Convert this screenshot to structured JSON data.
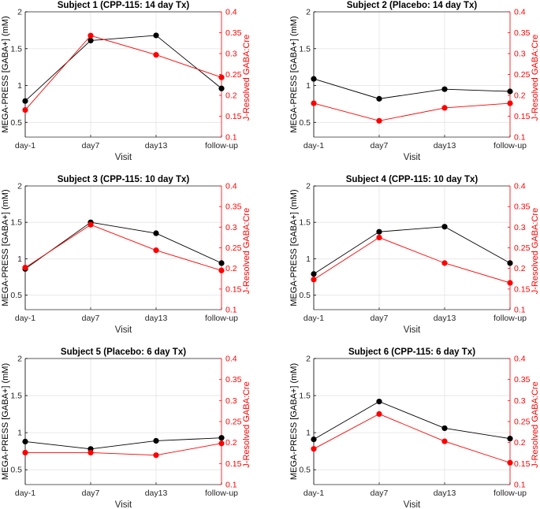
{
  "figure": {
    "left_axis_color": "#000000",
    "right_axis_color": "#ff0000"
  },
  "chart_data": [
    {
      "type": "line",
      "title": "Subject 1 (CPP-115: 14 day Tx)",
      "categories": [
        "day-1",
        "day7",
        "day13",
        "follow-up"
      ],
      "xlabel": "Visit",
      "ylabel": "MEGA-PRESS [GABA+] (mM)",
      "ylim": [
        0.3,
        2
      ],
      "yticks": [
        "0.5",
        "1",
        "1.5",
        "2"
      ],
      "ylabel_right": "J-Resolved GABA:Cre",
      "ylim_right": [
        0.1,
        0.4
      ],
      "yticks_right": [
        "0.1",
        "0.15",
        "0.2",
        "0.25",
        "0.3",
        "0.35",
        "0.4"
      ],
      "grid": true,
      "series": [
        {
          "name": "MEGA-PRESS [GABA+]",
          "axis": "left",
          "color": "#000000",
          "values": [
            0.79,
            1.61,
            1.68,
            0.96
          ]
        },
        {
          "name": "J-Resolved GABA:Cre",
          "axis": "right",
          "color": "#ff0000",
          "values": [
            0.165,
            0.343,
            0.297,
            0.243
          ]
        }
      ]
    },
    {
      "type": "line",
      "title": "Subject 2 (Placebo: 14 day Tx)",
      "categories": [
        "day-1",
        "day7",
        "day13",
        "follow-up"
      ],
      "xlabel": "Visit",
      "ylabel": "MEGA-PRESS [GABA+] (mM)",
      "ylim": [
        0.3,
        2
      ],
      "yticks": [
        "0.5",
        "1",
        "1.5",
        "2"
      ],
      "ylabel_right": "J-Resolved GABA:Cre",
      "ylim_right": [
        0.1,
        0.4
      ],
      "yticks_right": [
        "0.1",
        "0.15",
        "0.2",
        "0.25",
        "0.3",
        "0.35",
        "0.4"
      ],
      "grid": true,
      "series": [
        {
          "name": "MEGA-PRESS [GABA+]",
          "axis": "left",
          "color": "#000000",
          "values": [
            1.09,
            0.82,
            0.95,
            0.92
          ]
        },
        {
          "name": "J-Resolved GABA:Cre",
          "axis": "right",
          "color": "#ff0000",
          "values": [
            0.181,
            0.139,
            0.17,
            0.181
          ]
        }
      ]
    },
    {
      "type": "line",
      "title": "Subject 3 (CPP-115: 10 day Tx)",
      "categories": [
        "day-1",
        "day7",
        "day13",
        "follow-up"
      ],
      "xlabel": "Visit",
      "ylabel": "MEGA-PRESS [GABA+] (mM)",
      "ylim": [
        0.3,
        2
      ],
      "yticks": [
        "0.5",
        "1",
        "1.5",
        "2"
      ],
      "ylabel_right": "J-Resolved GABA:Cre",
      "ylim_right": [
        0.1,
        0.4
      ],
      "yticks_right": [
        "0.1",
        "0.15",
        "0.2",
        "0.25",
        "0.3",
        "0.35",
        "0.4"
      ],
      "grid": true,
      "series": [
        {
          "name": "MEGA-PRESS [GABA+]",
          "axis": "left",
          "color": "#000000",
          "values": [
            0.86,
            1.5,
            1.35,
            0.94
          ]
        },
        {
          "name": "J-Resolved GABA:Cre",
          "axis": "right",
          "color": "#ff0000",
          "values": [
            0.202,
            0.306,
            0.244,
            0.195
          ]
        }
      ]
    },
    {
      "type": "line",
      "title": "Subject 4 (CPP-115: 10 day Tx)",
      "categories": [
        "day-1",
        "day7",
        "day13",
        "follow-up"
      ],
      "xlabel": "Visit",
      "ylabel": "MEGA-PRESS [GABA+] (mM)",
      "ylim": [
        0.3,
        2
      ],
      "yticks": [
        "0.5",
        "1",
        "1.5",
        "2"
      ],
      "ylabel_right": "J-Resolved GABA:Cre",
      "ylim_right": [
        0.1,
        0.4
      ],
      "yticks_right": [
        "0.1",
        "0.15",
        "0.2",
        "0.25",
        "0.3",
        "0.35",
        "0.4"
      ],
      "grid": true,
      "series": [
        {
          "name": "MEGA-PRESS [GABA+]",
          "axis": "left",
          "color": "#000000",
          "values": [
            0.79,
            1.37,
            1.44,
            0.94
          ]
        },
        {
          "name": "J-Resolved GABA:Cre",
          "axis": "right",
          "color": "#ff0000",
          "values": [
            0.173,
            0.275,
            0.213,
            0.165
          ]
        }
      ]
    },
    {
      "type": "line",
      "title": "Subject 5 (Placebo:  6 day Tx)",
      "categories": [
        "day-1",
        "day7",
        "day13",
        "follow-up"
      ],
      "xlabel": "Visit",
      "ylabel": "MEGA-PRESS [GABA+] (mM)",
      "ylim": [
        0.3,
        2
      ],
      "yticks": [
        "0.5",
        "1",
        "1.5",
        "2"
      ],
      "ylabel_right": "J-Resolved GABA:Cre",
      "ylim_right": [
        0.1,
        0.4
      ],
      "yticks_right": [
        "0.1",
        "0.15",
        "0.2",
        "0.25",
        "0.3",
        "0.35",
        "0.4"
      ],
      "grid": true,
      "series": [
        {
          "name": "MEGA-PRESS [GABA+]",
          "axis": "left",
          "color": "#000000",
          "values": [
            0.88,
            0.78,
            0.89,
            0.93
          ]
        },
        {
          "name": "J-Resolved GABA:Cre",
          "axis": "right",
          "color": "#ff0000",
          "values": [
            0.176,
            0.176,
            0.17,
            0.198
          ]
        }
      ]
    },
    {
      "type": "line",
      "title": "Subject 6 (CPP-115:  6 day Tx)",
      "categories": [
        "day-1",
        "day7",
        "day13",
        "follow-up"
      ],
      "xlabel": "Visit",
      "ylabel": "MEGA-PRESS [GABA+] (mM)",
      "ylim": [
        0.3,
        2
      ],
      "yticks": [
        "0.5",
        "1",
        "1.5",
        "2"
      ],
      "ylabel_right": "J-Resolved GABA:Cre",
      "ylim_right": [
        0.1,
        0.4
      ],
      "yticks_right": [
        "0.1",
        "0.15",
        "0.2",
        "0.25",
        "0.3",
        "0.35",
        "0.4"
      ],
      "grid": true,
      "series": [
        {
          "name": "MEGA-PRESS [GABA+]",
          "axis": "left",
          "color": "#000000",
          "values": [
            0.91,
            1.42,
            1.06,
            0.92
          ]
        },
        {
          "name": "J-Resolved GABA:Cre",
          "axis": "right",
          "color": "#ff0000",
          "values": [
            0.185,
            0.268,
            0.203,
            0.152
          ]
        }
      ]
    }
  ]
}
